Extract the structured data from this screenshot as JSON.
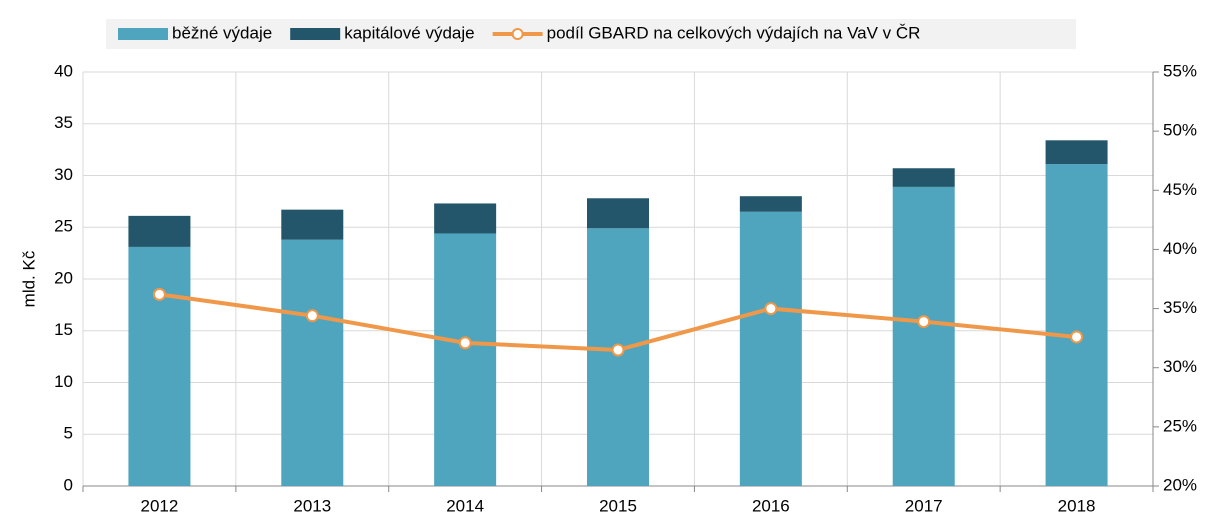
{
  "chart_data": {
    "type": "bar",
    "stacked": true,
    "categories": [
      "2012",
      "2013",
      "2014",
      "2015",
      "2016",
      "2017",
      "2018"
    ],
    "series": [
      {
        "name": "běžné výdaje",
        "color": "#4fa5bd",
        "values": [
          23.1,
          23.8,
          24.4,
          24.9,
          26.5,
          28.9,
          31.1
        ]
      },
      {
        "name": "kapitálové výdaje",
        "color": "#23566a",
        "values": [
          3.0,
          2.9,
          2.9,
          2.9,
          1.5,
          1.8,
          2.3
        ]
      },
      {
        "name": "podíl GBARD na celkových výdajích na VaV v ČR",
        "color": "#f0984a",
        "type": "line",
        "axis": "y2",
        "values": [
          36.2,
          34.4,
          32.1,
          31.5,
          35.0,
          33.9,
          32.6
        ]
      }
    ],
    "ylabel": "mld. Kč",
    "ylim": [
      0,
      40
    ],
    "yticks": [
      0,
      5,
      10,
      15,
      20,
      25,
      30,
      35,
      40
    ],
    "y2lim": [
      20,
      55
    ],
    "y2ticks": [
      {
        "value": 20,
        "label": "20%"
      },
      {
        "value": 25,
        "label": "25%"
      },
      {
        "value": 30,
        "label": "30%"
      },
      {
        "value": 35,
        "label": "35%"
      },
      {
        "value": 40,
        "label": "40%"
      },
      {
        "value": 45,
        "label": "45%"
      },
      {
        "value": 50,
        "label": "50%"
      },
      {
        "value": 55,
        "label": "55%"
      }
    ],
    "grid": true,
    "legend": "top"
  }
}
